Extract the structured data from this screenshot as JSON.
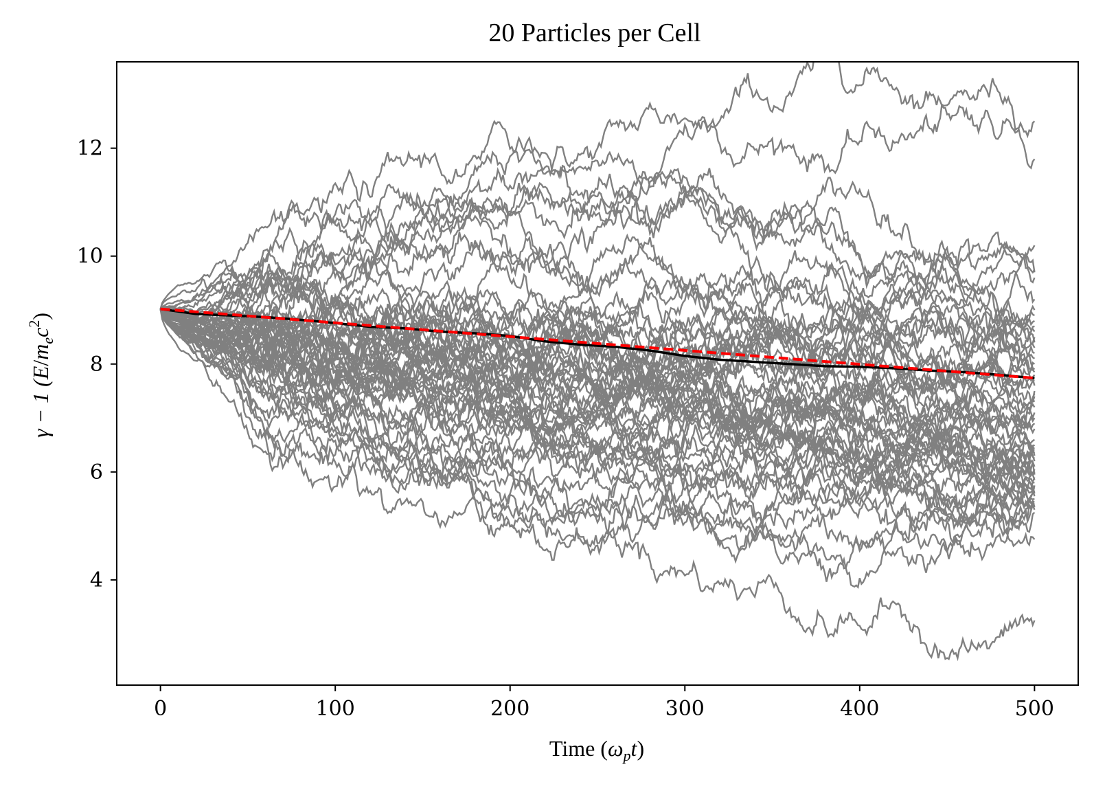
{
  "chart_data": {
    "type": "line",
    "title": "20 Particles per Cell",
    "xlabel": {
      "prefix": "Time (",
      "var": "ω",
      "sub": "p",
      "var2": "t",
      "suffix": ")"
    },
    "ylabel": {
      "pre": "γ − 1  (",
      "var": "E",
      "slash": "/",
      "var2": "m",
      "sub": "e",
      "var3": "c",
      "sup": "2",
      "suffix": ")"
    },
    "xlim": [
      -25,
      525
    ],
    "ylim": [
      2.05,
      13.6
    ],
    "xticks": [
      0,
      100,
      200,
      300,
      400,
      500
    ],
    "yticks": [
      4,
      6,
      8,
      10,
      12
    ],
    "grid": false,
    "colors": {
      "particles": "#808080",
      "mean": "#000000",
      "fit": "#ff0000"
    },
    "particle_count": 60,
    "particle_final_values": [
      12.5,
      11.8,
      10.2,
      9.75,
      9.7,
      9.6,
      9.2,
      9.0,
      8.9,
      8.8,
      8.7,
      8.6,
      8.5,
      8.4,
      8.3,
      8.2,
      8.1,
      8.0,
      7.9,
      7.85,
      7.8,
      7.7,
      7.6,
      7.5,
      7.45,
      7.4,
      7.3,
      7.2,
      7.1,
      7.0,
      6.9,
      6.8,
      6.6,
      6.5,
      6.45,
      6.4,
      6.35,
      6.3,
      6.25,
      6.2,
      6.1,
      6.05,
      6.0,
      5.95,
      5.9,
      5.85,
      5.8,
      5.75,
      5.7,
      5.65,
      5.6,
      5.55,
      5.5,
      5.45,
      5.4,
      5.35,
      5.3,
      5.25,
      4.75,
      3.25
    ],
    "series": [
      {
        "key": "particles",
        "start_value": 9.02,
        "end_time": 500
      },
      {
        "key": "mean",
        "x": [
          0,
          20,
          40,
          60,
          80,
          100,
          120,
          140,
          160,
          180,
          200,
          220,
          240,
          260,
          280,
          300,
          320,
          340,
          360,
          380,
          400,
          420,
          440,
          460,
          480,
          500
        ],
        "values": [
          9.02,
          8.93,
          8.9,
          8.87,
          8.82,
          8.76,
          8.69,
          8.66,
          8.6,
          8.57,
          8.52,
          8.42,
          8.36,
          8.32,
          8.25,
          8.15,
          8.08,
          8.04,
          8.0,
          7.96,
          7.95,
          7.92,
          7.88,
          7.85,
          7.8,
          7.74
        ]
      },
      {
        "key": "fit",
        "x": [
          0,
          500
        ],
        "values": [
          9.02,
          7.74
        ]
      }
    ]
  }
}
